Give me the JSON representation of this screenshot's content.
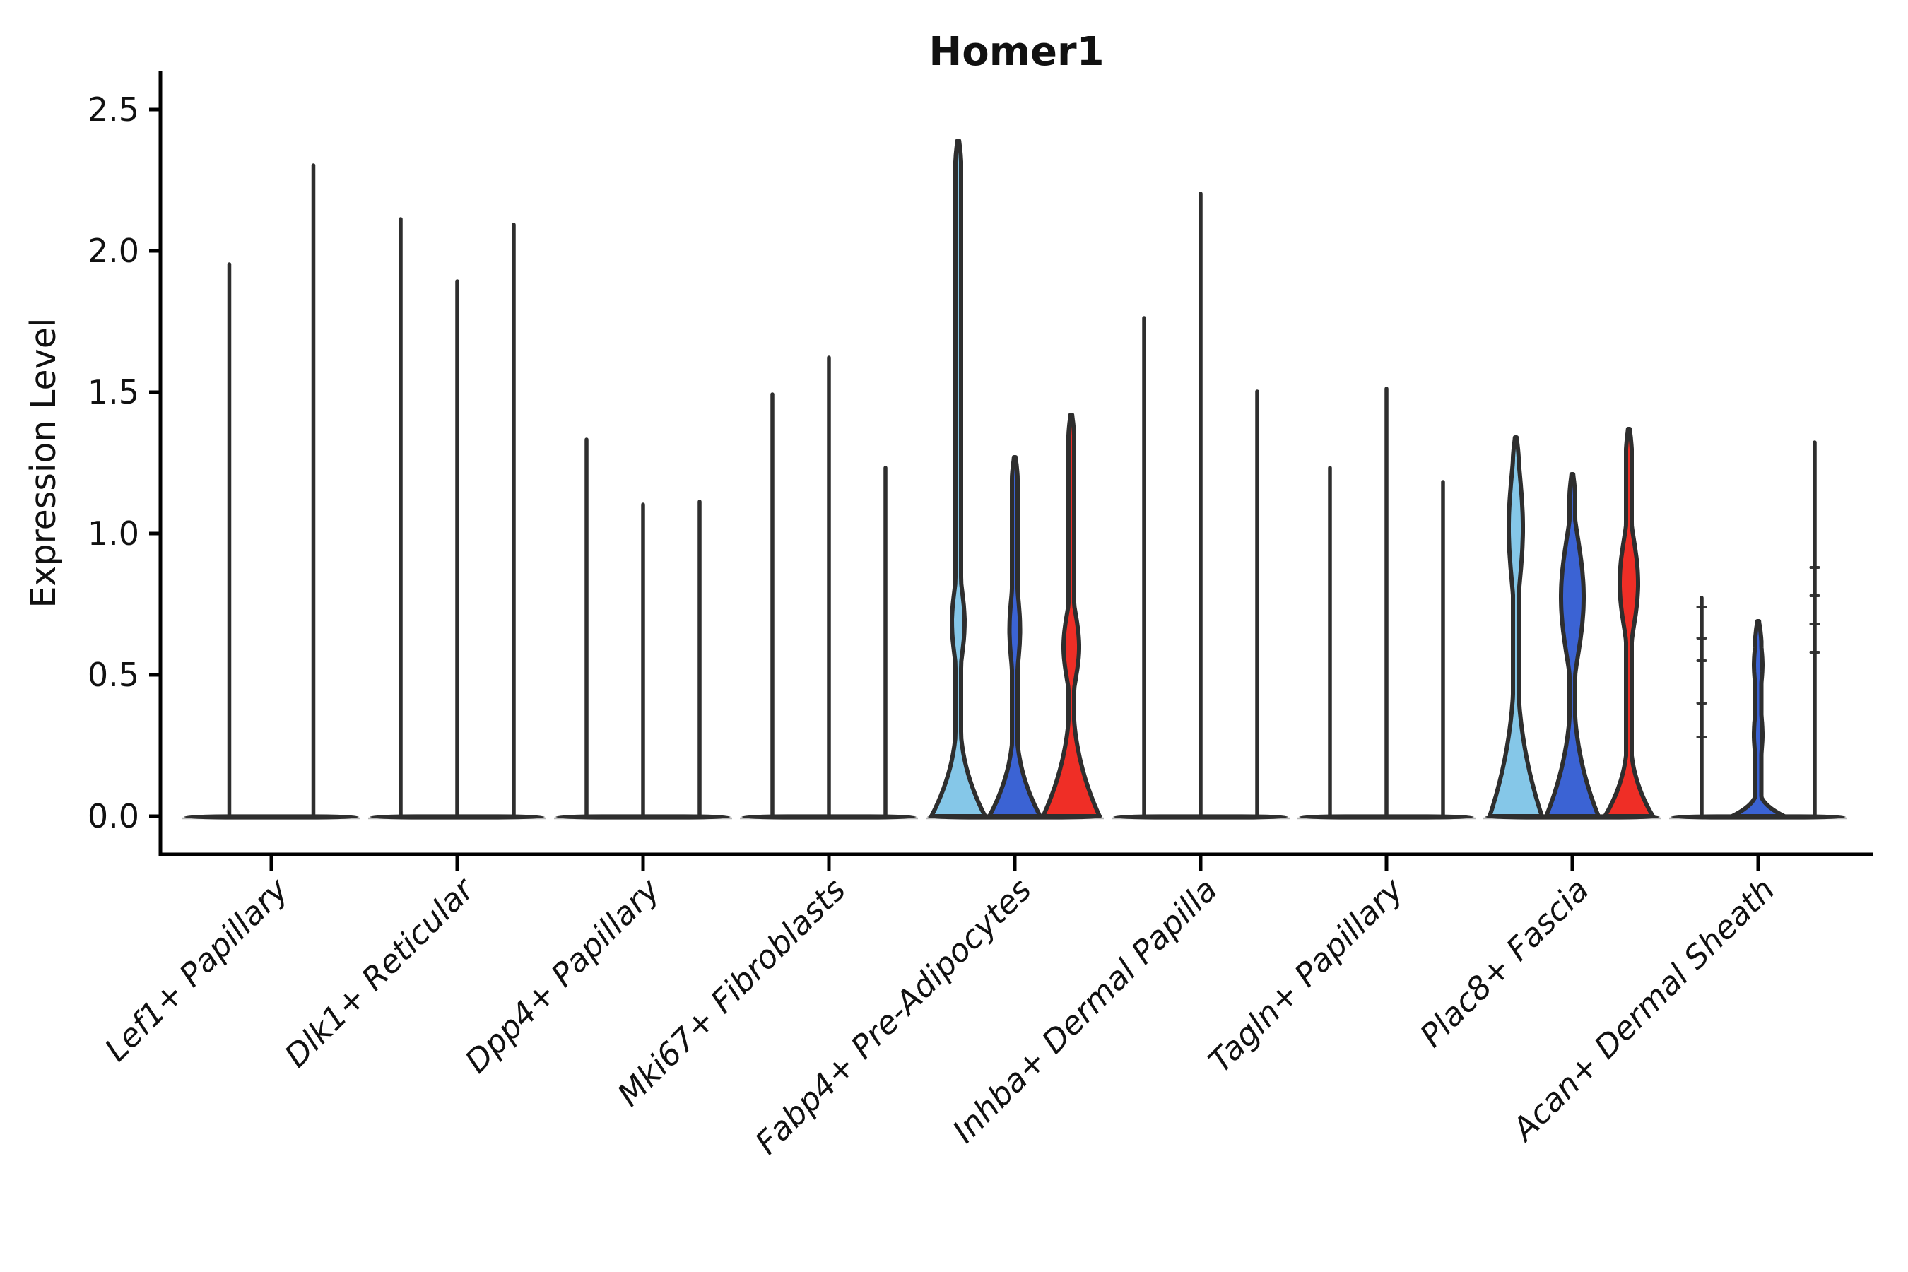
{
  "title": "Homer1",
  "y_axis_label": "Expression Level",
  "chart_data": {
    "type": "violin",
    "title": "Homer1",
    "xlabel": "",
    "ylabel": "Expression Level",
    "yticks": [
      "0.0",
      "0.5",
      "1.0",
      "1.5",
      "2.0",
      "2.5"
    ],
    "ytick_values": [
      0.0,
      0.5,
      1.0,
      1.5,
      2.0,
      2.5
    ],
    "ylim": [
      -0.14,
      2.64
    ],
    "grid": false,
    "legend": "none",
    "series_colors": {
      "lightblue": "#85C7E8",
      "blue": "#3B63D4",
      "red": "#EF2E26",
      "outline": "#2E2E2E"
    },
    "categories": [
      "Lef1+ Papillary",
      "Dlk1+ Reticular",
      "Dpp4+ Papillary",
      "Mki67+ Fibroblasts",
      "Fabp4+ Pre-Adipocytes",
      "Inhba+ Dermal Papilla",
      "Tagln+ Papillary",
      "Plac8+ Fascia",
      "Acan+ Dermal Sheath"
    ],
    "groups": [
      {
        "category": "Lef1+ Papillary",
        "violins": [
          {
            "series": "lightblue",
            "offset": -59.5,
            "max": 1.96
          },
          {
            "series": "blue",
            "offset": 59.5,
            "max": 2.31
          }
        ]
      },
      {
        "category": "Dlk1+ Reticular",
        "violins": [
          {
            "series": "lightblue",
            "offset": -80,
            "max": 2.12
          },
          {
            "series": "blue",
            "offset": 0,
            "max": 1.9
          },
          {
            "series": "red",
            "offset": 80,
            "max": 2.1
          }
        ]
      },
      {
        "category": "Dpp4+ Papillary",
        "violins": [
          {
            "series": "lightblue",
            "offset": -80,
            "max": 1.34
          },
          {
            "series": "blue",
            "offset": 0,
            "max": 1.11
          },
          {
            "series": "red",
            "offset": 80,
            "max": 1.12
          }
        ]
      },
      {
        "category": "Mki67+ Fibroblasts",
        "violins": [
          {
            "series": "lightblue",
            "offset": -80,
            "max": 1.5
          },
          {
            "series": "blue",
            "offset": 0,
            "max": 1.63
          },
          {
            "series": "red",
            "offset": 80,
            "max": 1.24
          }
        ]
      },
      {
        "category": "Fabp4+ Pre-Adipocytes",
        "violins": [
          {
            "series": "lightblue",
            "offset": -80,
            "max": 2.39,
            "body": {
              "base_hw": 38,
              "base_top": 0.36,
              "stem_hw": 4,
              "bulges": [
                [
                  0.54,
                  0.83,
                  9
                ]
              ]
            }
          },
          {
            "series": "blue",
            "offset": 0,
            "max": 1.27,
            "body": {
              "base_hw": 36,
              "base_top": 0.33,
              "stem_hw": 4,
              "bulges": [
                [
                  0.52,
                  0.8,
                  7.5
                ]
              ]
            }
          },
          {
            "series": "red",
            "offset": 80,
            "max": 1.42,
            "body": {
              "base_hw": 40,
              "base_top": 0.43,
              "stem_hw": 4,
              "bulges": [
                [
                  0.45,
                  0.75,
                  11
                ]
              ]
            }
          }
        ]
      },
      {
        "category": "Inhba+ Dermal Papilla",
        "violins": [
          {
            "series": "lightblue",
            "offset": -80,
            "max": 1.77
          },
          {
            "series": "blue",
            "offset": 0,
            "max": 2.21
          },
          {
            "series": "red",
            "offset": 80,
            "max": 1.51
          }
        ]
      },
      {
        "category": "Tagln+ Papillary",
        "violins": [
          {
            "series": "lightblue",
            "offset": -80,
            "max": 1.24
          },
          {
            "series": "blue",
            "offset": 0,
            "max": 1.52
          },
          {
            "series": "red",
            "offset": 80,
            "max": 1.19
          }
        ]
      },
      {
        "category": "Plac8+ Fascia",
        "violins": [
          {
            "series": "lightblue",
            "offset": -80,
            "max": 1.34,
            "body": {
              "base_hw": 37,
              "base_top": 0.55,
              "stem_hw": 4,
              "bulges": [
                [
                  0.78,
                  1.26,
                  10
                ]
              ]
            }
          },
          {
            "series": "blue",
            "offset": 0,
            "max": 1.21,
            "body": {
              "base_hw": 37,
              "base_top": 0.45,
              "stem_hw": 4,
              "bulges": [
                [
                  0.5,
                  1.05,
                  16
                ]
              ]
            }
          },
          {
            "series": "red",
            "offset": 80,
            "max": 1.37,
            "body": {
              "base_hw": 34,
              "base_top": 0.28,
              "stem_hw": 4,
              "bulges": [
                [
                  0.62,
                  1.03,
                  13
                ]
              ]
            }
          }
        ]
      },
      {
        "category": "Acan+ Dermal Sheath",
        "violins": [
          {
            "series": "lightblue",
            "offset": -80,
            "max": 0.78,
            "marks": [
              0.74,
              0.63,
              0.55,
              0.4,
              0.28
            ]
          },
          {
            "series": "blue",
            "offset": 0,
            "max": 0.69,
            "body": {
              "base_hw": 37,
              "base_top": 0.09,
              "stem_hw": 4.5,
              "bulges": [
                [
                  0.47,
                  0.6,
                  6
                ],
                [
                  0.22,
                  0.36,
                  6
                ]
              ]
            }
          },
          {
            "series": "red",
            "offset": 80,
            "max": 1.33,
            "marks": [
              0.88,
              0.78,
              0.68,
              0.58
            ]
          }
        ]
      }
    ]
  }
}
